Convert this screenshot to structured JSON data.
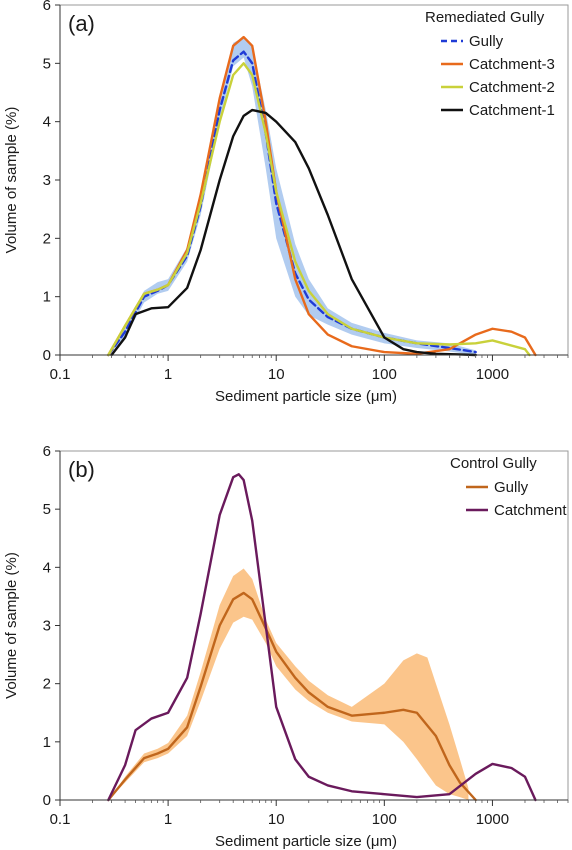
{
  "chart_data": [
    {
      "type": "line",
      "panel_label": "(a)",
      "xlabel": "Sediment particle size (μm)",
      "ylabel": "Volume of sample (%)",
      "xscale": "log",
      "xlim": [
        0.1,
        5000
      ],
      "ylim": [
        0,
        6
      ],
      "xticks": [
        0.1,
        1,
        10,
        100,
        1000
      ],
      "xtick_labels": [
        "0.1",
        "1",
        "10",
        "100",
        "1000"
      ],
      "yticks": [
        0,
        1,
        2,
        3,
        4,
        5,
        6
      ],
      "ytick_labels": [
        "0",
        "1",
        "2",
        "3",
        "4",
        "5",
        "6"
      ],
      "grid": false,
      "legend": {
        "title": "Remediated Gully",
        "placement": "top-right"
      },
      "band": {
        "series": "Gully",
        "color": "#a9c6ee",
        "x": [
          0.28,
          0.4,
          0.6,
          0.8,
          1.0,
          1.5,
          2,
          3,
          4,
          5,
          6,
          8,
          10,
          15,
          20,
          30,
          50,
          100,
          200,
          400,
          700
        ],
        "low": [
          0,
          0.3,
          0.9,
          1.05,
          1.1,
          1.6,
          2.4,
          4.0,
          4.95,
          5.1,
          4.6,
          3.2,
          2.0,
          1.0,
          0.68,
          0.52,
          0.35,
          0.2,
          0.12,
          0.06,
          0
        ],
        "high": [
          0,
          0.5,
          1.1,
          1.25,
          1.3,
          1.85,
          2.75,
          4.4,
          5.35,
          5.45,
          5.3,
          4.2,
          3.2,
          1.9,
          1.3,
          0.8,
          0.55,
          0.38,
          0.25,
          0.2,
          0.08
        ]
      },
      "series": [
        {
          "name": "Gully",
          "color": "#1f3bd6",
          "style": "dashed",
          "x": [
            0.28,
            0.4,
            0.6,
            0.8,
            1.0,
            1.5,
            2,
            3,
            4,
            5,
            6,
            8,
            10,
            15,
            20,
            30,
            50,
            100,
            200,
            400,
            700
          ],
          "y": [
            0,
            0.4,
            1.0,
            1.1,
            1.2,
            1.7,
            2.55,
            4.2,
            5.05,
            5.2,
            5.0,
            3.8,
            2.6,
            1.4,
            0.95,
            0.65,
            0.45,
            0.3,
            0.2,
            0.12,
            0.05
          ]
        },
        {
          "name": "Catchment-3",
          "color": "#e86a1c",
          "style": "solid",
          "x": [
            0.28,
            0.4,
            0.6,
            0.8,
            1.0,
            1.5,
            2,
            3,
            4,
            5,
            6,
            8,
            10,
            15,
            20,
            30,
            50,
            100,
            200,
            400,
            700,
            1000,
            1500,
            2000,
            2500
          ],
          "y": [
            0,
            0.5,
            1.05,
            1.12,
            1.2,
            1.8,
            2.75,
            4.4,
            5.3,
            5.45,
            5.3,
            4.0,
            2.8,
            1.3,
            0.7,
            0.35,
            0.15,
            0.05,
            0.02,
            0.1,
            0.35,
            0.45,
            0.4,
            0.3,
            0
          ]
        },
        {
          "name": "Catchment-2",
          "color": "#c9d13a",
          "style": "solid",
          "x": [
            0.28,
            0.4,
            0.6,
            0.8,
            1.0,
            1.5,
            2,
            3,
            4,
            5,
            6,
            8,
            10,
            15,
            20,
            30,
            50,
            100,
            200,
            400,
            700,
            1000,
            2000,
            2200
          ],
          "y": [
            0,
            0.5,
            1.05,
            1.12,
            1.2,
            1.75,
            2.6,
            4.0,
            4.8,
            5.0,
            4.8,
            3.8,
            2.8,
            1.6,
            1.1,
            0.7,
            0.45,
            0.3,
            0.2,
            0.18,
            0.2,
            0.25,
            0.1,
            0
          ]
        },
        {
          "name": "Catchment-1",
          "color": "#111111",
          "style": "solid",
          "x": [
            0.3,
            0.4,
            0.5,
            0.7,
            1.0,
            1.5,
            2,
            3,
            4,
            5,
            6,
            8,
            10,
            15,
            20,
            30,
            50,
            100,
            150,
            200,
            300,
            500,
            700
          ],
          "y": [
            0,
            0.3,
            0.7,
            0.8,
            0.82,
            1.15,
            1.8,
            3.0,
            3.75,
            4.1,
            4.2,
            4.15,
            4.0,
            3.65,
            3.2,
            2.4,
            1.3,
            0.3,
            0.1,
            0.05,
            0.02,
            0.01,
            0
          ]
        }
      ]
    },
    {
      "type": "line",
      "panel_label": "(b)",
      "xlabel": "Sediment particle size (μm)",
      "ylabel": "Volume of sample (%)",
      "xscale": "log",
      "xlim": [
        0.1,
        5000
      ],
      "ylim": [
        0,
        6
      ],
      "xticks": [
        0.1,
        1,
        10,
        100,
        1000
      ],
      "xtick_labels": [
        "0.1",
        "1",
        "10",
        "100",
        "1000"
      ],
      "yticks": [
        0,
        1,
        2,
        3,
        4,
        5,
        6
      ],
      "ytick_labels": [
        "0",
        "1",
        "2",
        "3",
        "4",
        "5",
        "6"
      ],
      "grid": false,
      "legend": {
        "title": "Control Gully",
        "placement": "top-right"
      },
      "band": {
        "series": "Gully",
        "color": "#fbbf7e",
        "x": [
          0.28,
          0.4,
          0.6,
          0.8,
          1.0,
          1.5,
          2,
          3,
          4,
          5,
          6,
          8,
          10,
          15,
          20,
          30,
          50,
          100,
          150,
          200,
          250,
          300,
          400,
          500,
          600
        ],
        "low": [
          0,
          0.3,
          0.65,
          0.72,
          0.8,
          1.1,
          1.7,
          2.6,
          3.05,
          3.15,
          3.1,
          2.7,
          2.3,
          1.9,
          1.7,
          1.5,
          1.35,
          1.3,
          1.0,
          0.7,
          0.45,
          0.25,
          0.1,
          0.05,
          0
        ],
        "high": [
          0,
          0.4,
          0.8,
          0.88,
          0.98,
          1.45,
          2.2,
          3.35,
          3.85,
          3.98,
          3.8,
          3.1,
          2.7,
          2.3,
          2.05,
          1.8,
          1.6,
          2.0,
          2.4,
          2.52,
          2.45,
          2.0,
          1.3,
          0.7,
          0.2
        ]
      },
      "series": [
        {
          "name": "Gully",
          "color": "#c0661c",
          "style": "solid",
          "x": [
            0.28,
            0.4,
            0.6,
            0.8,
            1.0,
            1.5,
            2,
            3,
            4,
            5,
            6,
            8,
            10,
            15,
            20,
            30,
            50,
            100,
            150,
            200,
            300,
            400,
            500,
            700
          ],
          "y": [
            0,
            0.35,
            0.72,
            0.8,
            0.88,
            1.25,
            1.95,
            3.0,
            3.45,
            3.56,
            3.45,
            2.95,
            2.55,
            2.1,
            1.85,
            1.6,
            1.45,
            1.5,
            1.55,
            1.5,
            1.1,
            0.6,
            0.3,
            0
          ]
        },
        {
          "name": "Catchment",
          "color": "#6a1a5c",
          "style": "solid",
          "x": [
            0.28,
            0.4,
            0.5,
            0.7,
            1.0,
            1.5,
            2,
            3,
            4,
            4.5,
            5,
            6,
            8,
            10,
            15,
            20,
            30,
            50,
            100,
            200,
            400,
            700,
            1000,
            1500,
            2000,
            2500
          ],
          "y": [
            0,
            0.6,
            1.2,
            1.4,
            1.5,
            2.1,
            3.2,
            4.9,
            5.55,
            5.6,
            5.5,
            4.8,
            3.0,
            1.6,
            0.7,
            0.4,
            0.25,
            0.15,
            0.1,
            0.05,
            0.1,
            0.45,
            0.62,
            0.55,
            0.4,
            0
          ]
        }
      ]
    }
  ]
}
